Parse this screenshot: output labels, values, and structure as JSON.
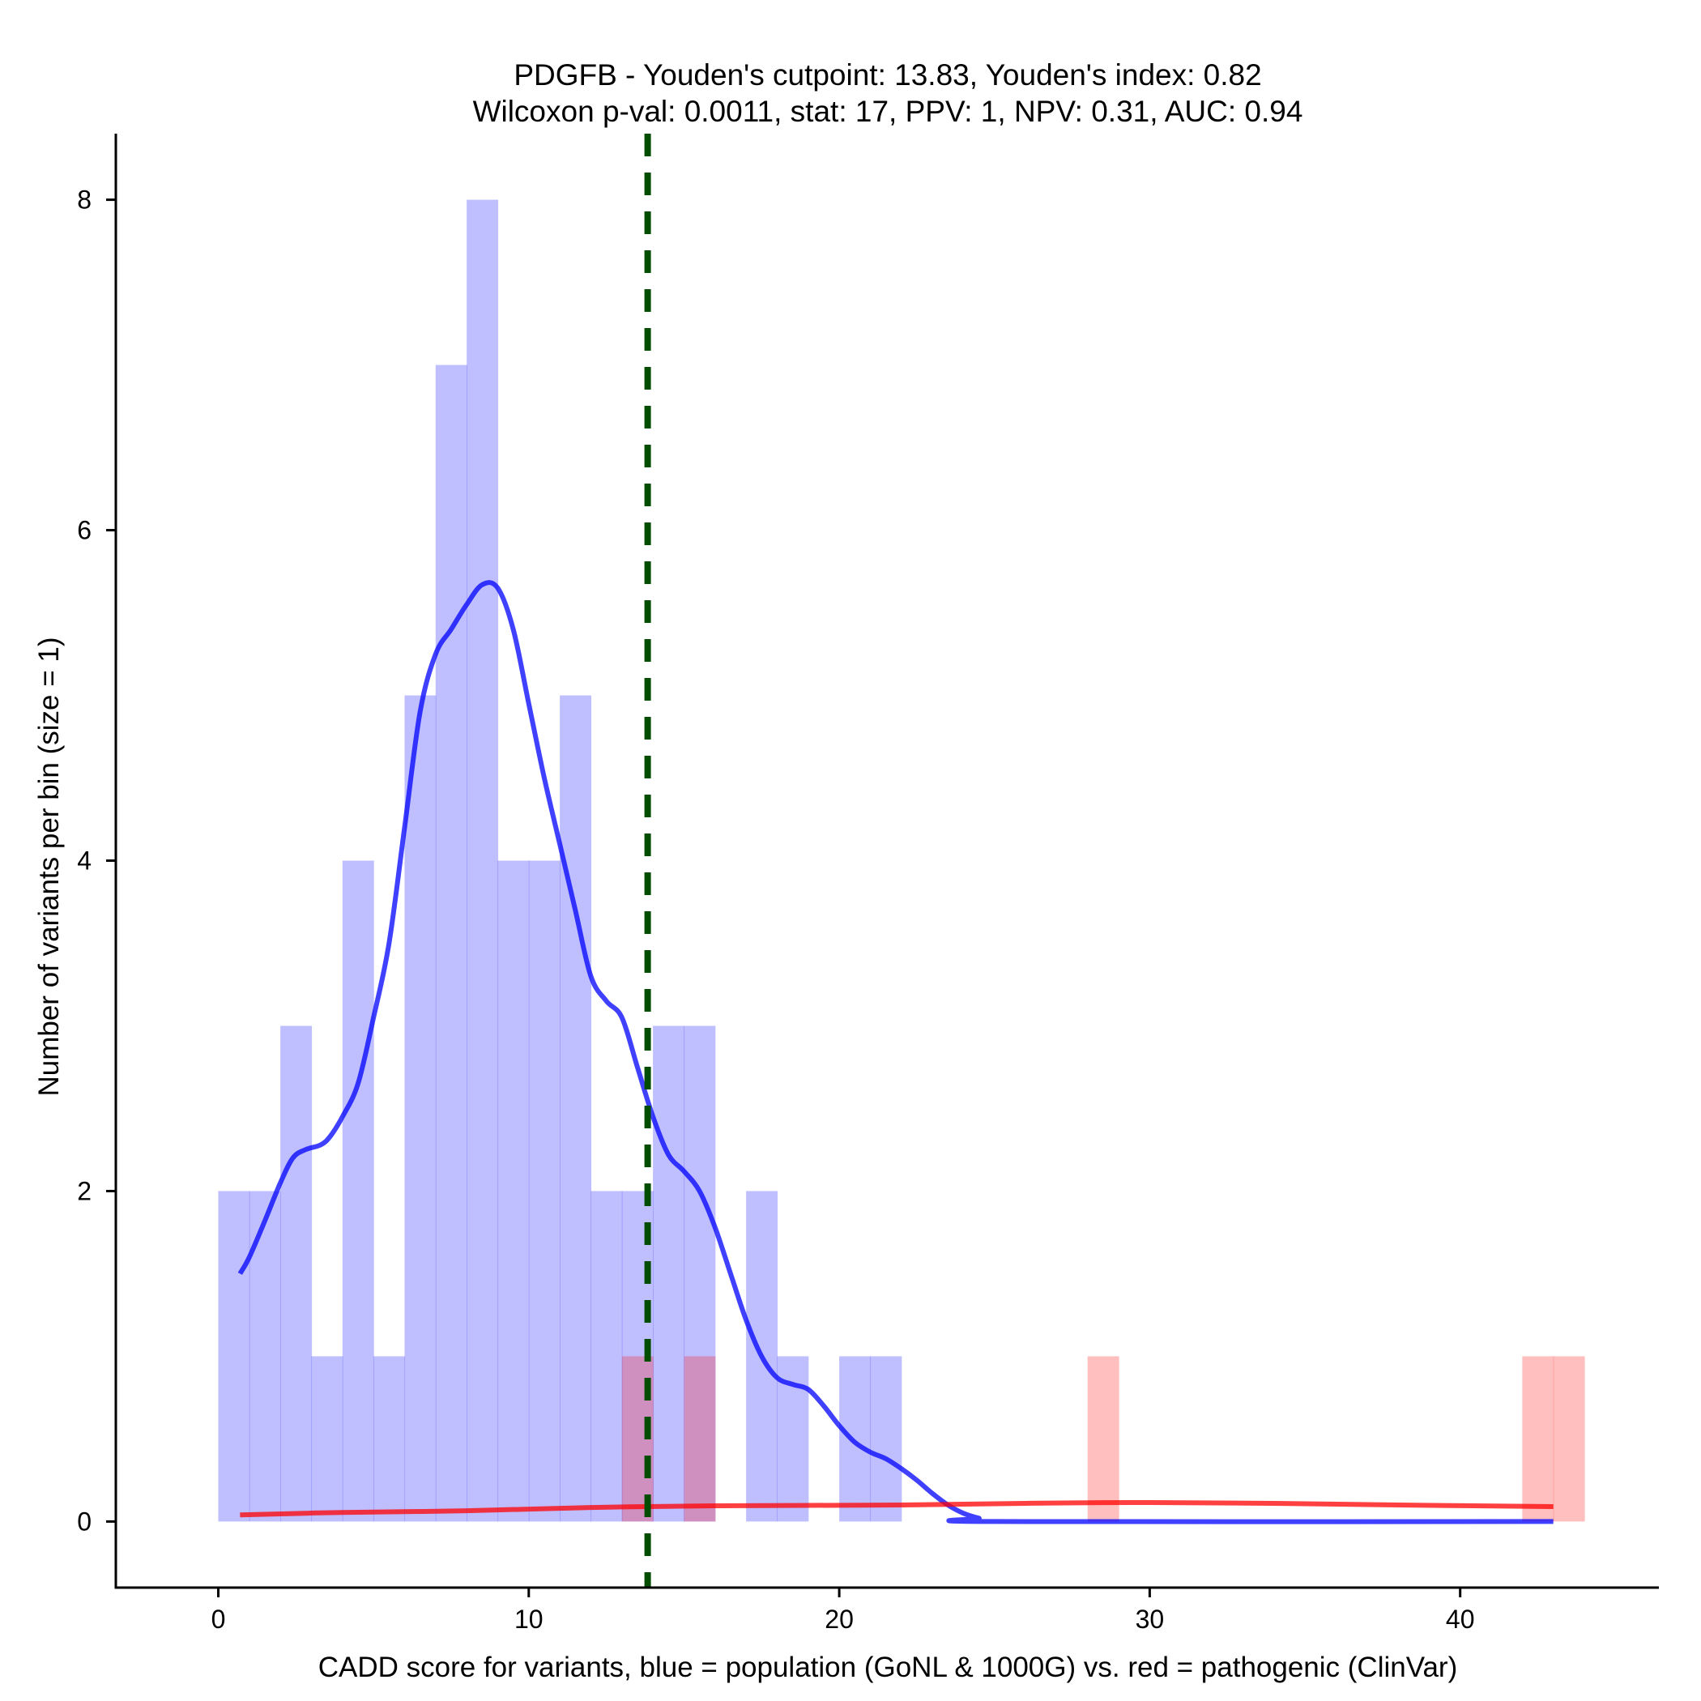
{
  "chart_data": {
    "type": "histogram",
    "title_line1": "PDGFB - Youden's cutpoint: 13.83, Youden's index: 0.82",
    "title_line2": "Wilcoxon p-val: 0.0011, stat: 17, PPV: 1, NPV: 0.31, AUC: 0.94",
    "xlabel": "CADD score for variants, blue = population (GoNL & 1000G) vs. red = pathogenic (ClinVar)",
    "ylabel": "Number of variants per bin (size = 1)",
    "xlim": [
      -3.3,
      46.4
    ],
    "ylim": [
      -0.4,
      8.4
    ],
    "x_ticks": [
      0,
      10,
      20,
      30,
      40
    ],
    "y_ticks": [
      0,
      2,
      4,
      6,
      8
    ],
    "bin_size": 1,
    "cutpoint": 13.83,
    "series": [
      {
        "name": "population (GoNL & 1000G)",
        "color": "#0000ff",
        "bins": [
          {
            "start": 0,
            "end": 1,
            "count": 2
          },
          {
            "start": 1,
            "end": 2,
            "count": 2
          },
          {
            "start": 2,
            "end": 3,
            "count": 3
          },
          {
            "start": 3,
            "end": 4,
            "count": 1
          },
          {
            "start": 4,
            "end": 5,
            "count": 4
          },
          {
            "start": 5,
            "end": 6,
            "count": 1
          },
          {
            "start": 6,
            "end": 7,
            "count": 5
          },
          {
            "start": 7,
            "end": 8,
            "count": 7
          },
          {
            "start": 8,
            "end": 9,
            "count": 8
          },
          {
            "start": 9,
            "end": 10,
            "count": 4
          },
          {
            "start": 10,
            "end": 11,
            "count": 4
          },
          {
            "start": 11,
            "end": 12,
            "count": 5
          },
          {
            "start": 12,
            "end": 13,
            "count": 2
          },
          {
            "start": 13,
            "end": 14,
            "count": 2
          },
          {
            "start": 14,
            "end": 15,
            "count": 3
          },
          {
            "start": 15,
            "end": 16,
            "count": 3
          },
          {
            "start": 17,
            "end": 18,
            "count": 2
          },
          {
            "start": 18,
            "end": 19,
            "count": 1
          },
          {
            "start": 20,
            "end": 21,
            "count": 1
          },
          {
            "start": 21,
            "end": 22,
            "count": 1
          }
        ],
        "density_curve": [
          [
            0.7,
            1.5
          ],
          [
            1.0,
            1.6
          ],
          [
            1.5,
            1.82
          ],
          [
            2.0,
            2.05
          ],
          [
            2.4,
            2.2
          ],
          [
            2.8,
            2.25
          ],
          [
            3.3,
            2.28
          ],
          [
            3.6,
            2.33
          ],
          [
            4.0,
            2.45
          ],
          [
            4.5,
            2.65
          ],
          [
            5.0,
            3.05
          ],
          [
            5.5,
            3.5
          ],
          [
            6.0,
            4.2
          ],
          [
            6.5,
            4.9
          ],
          [
            7.0,
            5.25
          ],
          [
            7.5,
            5.4
          ],
          [
            8.0,
            5.55
          ],
          [
            8.5,
            5.67
          ],
          [
            9.0,
            5.65
          ],
          [
            9.5,
            5.4
          ],
          [
            10.0,
            4.95
          ],
          [
            10.5,
            4.5
          ],
          [
            11.0,
            4.1
          ],
          [
            11.5,
            3.7
          ],
          [
            12.0,
            3.3
          ],
          [
            12.5,
            3.15
          ],
          [
            13.0,
            3.05
          ],
          [
            13.5,
            2.75
          ],
          [
            14.0,
            2.45
          ],
          [
            14.5,
            2.22
          ],
          [
            15.0,
            2.12
          ],
          [
            15.5,
            2.0
          ],
          [
            16.0,
            1.78
          ],
          [
            16.5,
            1.5
          ],
          [
            17.0,
            1.22
          ],
          [
            17.5,
            1.0
          ],
          [
            18.0,
            0.87
          ],
          [
            18.5,
            0.83
          ],
          [
            19.0,
            0.8
          ],
          [
            19.5,
            0.7
          ],
          [
            20.0,
            0.58
          ],
          [
            20.5,
            0.48
          ],
          [
            21.0,
            0.42
          ],
          [
            21.5,
            0.38
          ],
          [
            22.0,
            0.32
          ],
          [
            22.5,
            0.25
          ],
          [
            23.0,
            0.17
          ],
          [
            23.5,
            0.1
          ],
          [
            24.0,
            0.05
          ],
          [
            24.5,
            0.02
          ],
          [
            25.0,
            0.0
          ],
          [
            43.0,
            0.0
          ]
        ]
      },
      {
        "name": "pathogenic (ClinVar)",
        "color": "#ff0000",
        "bins": [
          {
            "start": 13,
            "end": 14,
            "count": 1
          },
          {
            "start": 15,
            "end": 16,
            "count": 1
          },
          {
            "start": 28,
            "end": 29,
            "count": 1
          },
          {
            "start": 42,
            "end": 43,
            "count": 1
          },
          {
            "start": 43,
            "end": 44,
            "count": 1
          }
        ],
        "density_curve": [
          [
            0.7,
            0.04
          ],
          [
            4.0,
            0.055
          ],
          [
            8.0,
            0.065
          ],
          [
            12.0,
            0.085
          ],
          [
            16.0,
            0.095
          ],
          [
            22.0,
            0.1
          ],
          [
            26.0,
            0.11
          ],
          [
            30.0,
            0.115
          ],
          [
            34.0,
            0.11
          ],
          [
            38.0,
            0.1
          ],
          [
            43.0,
            0.09
          ]
        ]
      }
    ]
  }
}
